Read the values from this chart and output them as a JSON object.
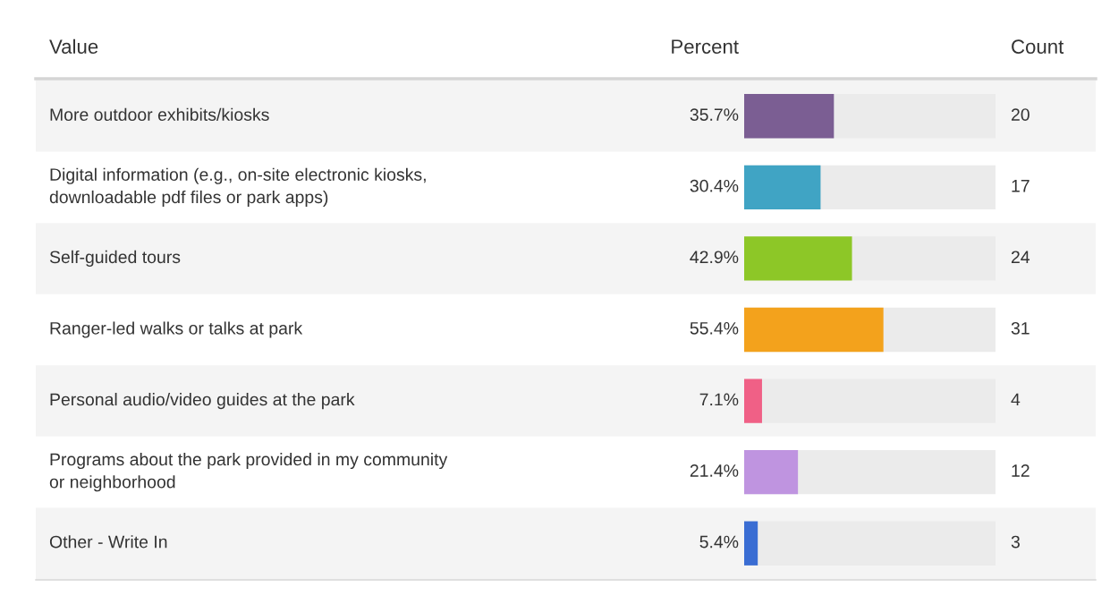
{
  "chart_data": {
    "type": "bar",
    "orientation": "horizontal",
    "categories": [
      "More outdoor exhibits/kiosks",
      "Digital information (e.g., on-site electronic kiosks,\ndownloadable pdf files or park apps)",
      "Self-guided tours",
      "Ranger-led walks or talks at park",
      "Personal audio/video guides at the park",
      "Programs about the park provided in my community\nor neighborhood",
      "Other - Write In"
    ],
    "values": [
      35.7,
      30.4,
      42.9,
      55.4,
      7.1,
      21.4,
      5.4
    ],
    "colors": [
      "#7b5e93",
      "#40a4c4",
      "#8dc727",
      "#f3a21c",
      "#f06086",
      "#bf94e0",
      "#3a6dd3"
    ],
    "value_labels": [
      "35.7%",
      "30.4%",
      "42.9%",
      "55.4%",
      "7.1%",
      "21.4%",
      "5.4%"
    ],
    "xlim": [
      0,
      100
    ],
    "annotations": [
      "Value",
      "Percent",
      "Count",
      "20",
      "17",
      "24",
      "31",
      "4",
      "12",
      "3"
    ]
  }
}
